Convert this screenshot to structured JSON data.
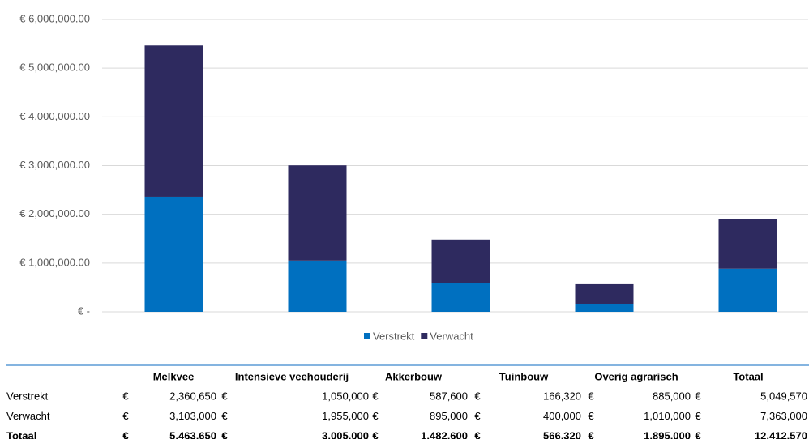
{
  "chart_data": {
    "type": "stacked-bar",
    "categories": [
      null,
      null,
      null,
      null,
      null
    ],
    "series": [
      {
        "name": "Verstrekt",
        "color": "#0070c0",
        "values": [
          2360650,
          1050000,
          587600,
          166320,
          885000
        ]
      },
      {
        "name": "Verwacht",
        "color": "#2e2a5f",
        "values": [
          3103000,
          1955000,
          895000,
          400000,
          1010000
        ]
      }
    ],
    "ylim": [
      0,
      6000000
    ],
    "yticks": [
      {
        "value": 0,
        "label": "€ -"
      },
      {
        "value": 1000000,
        "label": "€ 1,000,000.00"
      },
      {
        "value": 2000000,
        "label": "€ 2,000,000.00"
      },
      {
        "value": 3000000,
        "label": "€ 3,000,000.00"
      },
      {
        "value": 4000000,
        "label": "€ 4,000,000.00"
      },
      {
        "value": 5000000,
        "label": "€ 5,000,000.00"
      },
      {
        "value": 6000000,
        "label": "€ 6,000,000.00"
      }
    ],
    "grid": true,
    "legend": "bottom"
  },
  "table": {
    "currency": "€",
    "columns": [
      "Melkvee",
      "Intensieve veehouderij",
      "Akkerbouw",
      "Tuinbouw",
      "Overig agrarisch",
      "Totaal"
    ],
    "rows": [
      {
        "label": "Verstrekt",
        "bold": false,
        "cells": [
          "2,360,650",
          "1,050,000",
          "587,600",
          "166,320",
          "885,000",
          "5,049,570"
        ]
      },
      {
        "label": "Verwacht",
        "bold": false,
        "cells": [
          "3,103,000",
          "1,955,000",
          "895,000",
          "400,000",
          "1,010,000",
          "7,363,000"
        ]
      },
      {
        "label": "Totaal",
        "bold": true,
        "cells": [
          "5,463,650",
          "3,005,000",
          "1,482,600",
          "566,320",
          "1,895,000",
          "12,412,570"
        ]
      }
    ]
  }
}
